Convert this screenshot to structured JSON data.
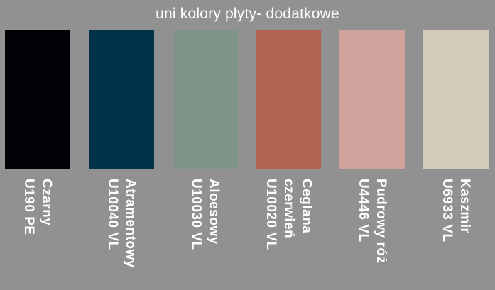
{
  "title": "uni kolory płyty- dodatkowe",
  "colors": {
    "background": "#909190",
    "title_text": "#ffffff",
    "label_text": "#ffffff"
  },
  "swatches": [
    {
      "name": "Czarny",
      "code": "U190 PE",
      "color": "#030105",
      "label": "Czarny\nU190 PE"
    },
    {
      "name": "Atramentowy",
      "code": "U10040 VL",
      "color": "#003348",
      "label": "Atramentowy\nU10040 VL"
    },
    {
      "name": "Aloesowy",
      "code": "U10030 VL",
      "color": "#7f9487",
      "label": "Aloesowy\nU10030 VL"
    },
    {
      "name": "Ceglana czerwień",
      "code": "U10020 VL",
      "color": "#b16350",
      "label": "Ceglana\nczerwień\nU10020 VL"
    },
    {
      "name": "Pudrowy róż",
      "code": "U4446 VL",
      "color": "#cfa49c",
      "label": "Pudrowy róż\nU4446 VL"
    },
    {
      "name": "Kaszmir",
      "code": "U6933 VL",
      "color": "#d3cabc",
      "label": "Kaszmir\nU6933 VL"
    }
  ]
}
